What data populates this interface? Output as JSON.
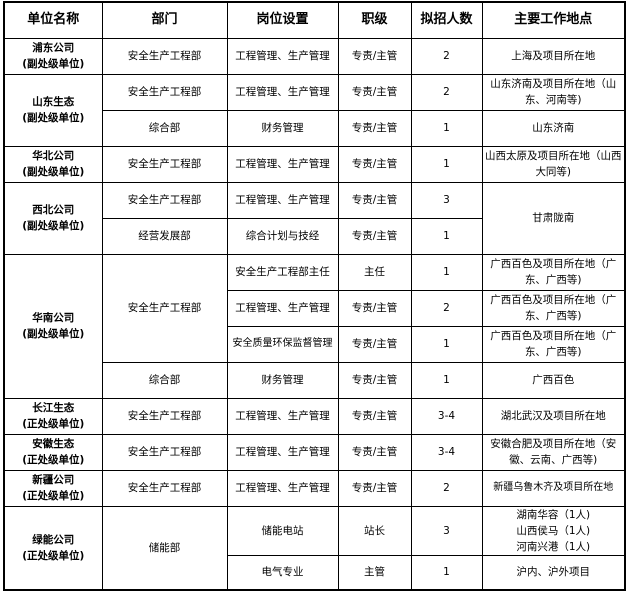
{
  "headers": [
    "单位名称",
    "部门",
    "岗位设置",
    "职级",
    "拟招人数",
    "主要工作地点"
  ],
  "rows": [
    {
      "unit": "浦东公司",
      "level": "(副处级单位)",
      "dept": "安全生产工程部",
      "post": "工程管理、生产管理",
      "grade": "专责/主管",
      "count": "2",
      "place": "上海及项目所在地"
    },
    {
      "unit": "山东生态",
      "level": "(副处级单位)",
      "dept": "安全生产工程部",
      "post": "工程管理、生产管理",
      "grade": "专责/主管",
      "count": "2",
      "place": "山东济南及项目所在地（山东、河南等)"
    },
    {
      "dept": "综合部",
      "post": "财务管理",
      "grade": "专责/主管",
      "count": "1",
      "place": "山东济南"
    },
    {
      "unit": "华北公司",
      "level": "(副处级单位)",
      "dept": "安全生产工程部",
      "post": "工程管理、生产管理",
      "grade": "专责/主管",
      "count": "1",
      "place": "山西太原及项目所在地（山西大同等)"
    },
    {
      "unit": "西北公司",
      "level": "(副处级单位)",
      "dept": "安全生产工程部",
      "post": "工程管理、生产管理",
      "grade": "专责/主管",
      "count": "3",
      "place": "甘肃陇南"
    },
    {
      "dept": "经营发展部",
      "post": "综合计划与技经",
      "grade": "专责/主管",
      "count": "1"
    },
    {
      "unit": "华南公司",
      "level": "(副处级单位)",
      "dept": "安全生产工程部",
      "post": "安全生产工程部主任",
      "grade": "主任",
      "count": "1",
      "place": "广西百色及项目所在地（广东、广西等)"
    },
    {
      "post": "工程管理、生产管理",
      "grade": "专责/主管",
      "count": "2",
      "place": "广西百色及项目所在地（广东、广西等)"
    },
    {
      "post": "安全质量环保监督管理",
      "grade": "专责/主管",
      "count": "1",
      "place": "广西百色及项目所在地（广东、广西等)"
    },
    {
      "dept": "综合部",
      "post": "财务管理",
      "grade": "专责/主管",
      "count": "1",
      "place": "广西百色"
    },
    {
      "unit": "长江生态",
      "level": "(正处级单位)",
      "dept": "安全生产工程部",
      "post": "工程管理、生产管理",
      "grade": "专责/主管",
      "count": "3-4",
      "place": "湖北武汉及项目所在地"
    },
    {
      "unit": "安徽生态",
      "level": "(正处级单位)",
      "dept": "安全生产工程部",
      "post": "工程管理、生产管理",
      "grade": "专责/主管",
      "count": "3-4",
      "place": "安徽合肥及项目所在地（安徽、云南、广西等)"
    },
    {
      "unit": "新疆公司",
      "level": "(正处级单位)",
      "dept": "安全生产工程部",
      "post": "工程管理、生产管理",
      "grade": "专责/主管",
      "count": "2",
      "place": "新疆乌鲁木齐及项目所在地"
    },
    {
      "unit": "绿能公司",
      "level": "(正处级单位)",
      "dept": "储能部",
      "post": "储能电站",
      "grade": "站长",
      "count": "3",
      "place1": "湖南华容（1人)",
      "place2": "山西侯马（1人)",
      "place3": "河南兴港（1人)"
    },
    {
      "post": "电气专业",
      "grade": "主管",
      "count": "1",
      "place": "沪内、沪外项目"
    }
  ]
}
